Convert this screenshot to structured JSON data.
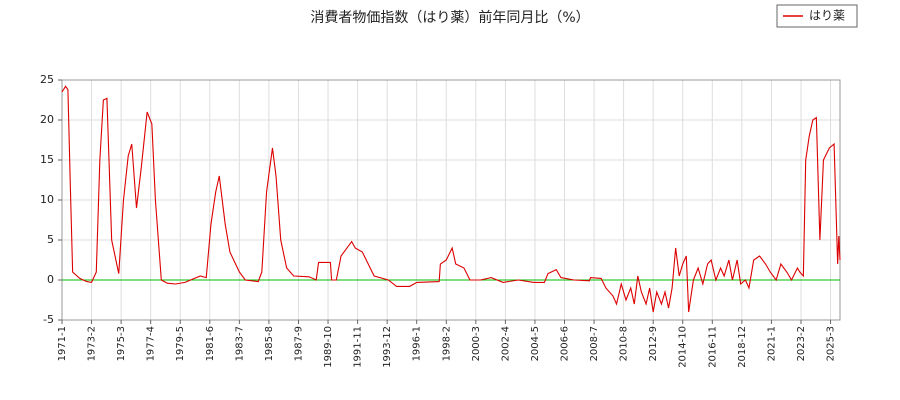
{
  "chart_data": {
    "type": "line",
    "title": "消費者物価指数（はり薬）前年同月比（%）",
    "x": [
      "1971-1",
      "1971-4",
      "1971-6",
      "1971-8",
      "1971-10",
      "1972-4",
      "1972-10",
      "1973-2",
      "1973-6",
      "1973-9",
      "1973-12",
      "1974-3",
      "1974-7",
      "1975-1",
      "1975-5",
      "1975-9",
      "1975-12",
      "1976-4",
      "1976-8",
      "1977-1",
      "1977-5",
      "1977-8",
      "1978-1",
      "1978-6",
      "1979-1",
      "1979-9",
      "1980-5",
      "1980-10",
      "1981-3",
      "1981-7",
      "1981-11",
      "1982-2",
      "1982-7",
      "1982-11",
      "1983-7",
      "1983-12",
      "1984-11",
      "1985-2",
      "1985-6",
      "1985-11",
      "1986-2",
      "1986-6",
      "1986-11",
      "1987-5",
      "1988-6",
      "1988-12",
      "1989-2",
      "1989-12",
      "1990-1",
      "1990-5",
      "1990-9",
      "1991-6",
      "1991-9",
      "1992-3",
      "1993-1",
      "1994-1",
      "1994-8",
      "1995-7",
      "1996-1",
      "1997-8",
      "1997-9",
      "1998-2",
      "1998-7",
      "1998-10",
      "1999-5",
      "1999-10",
      "2000-7",
      "2001-4",
      "2002-2",
      "2003-3",
      "2004-4",
      "2005-1",
      "2005-4",
      "2005-11",
      "2006-3",
      "2007-2",
      "2008-3",
      "2008-4",
      "2009-1",
      "2009-5",
      "2009-11",
      "2010-2",
      "2010-6",
      "2010-10",
      "2011-2",
      "2011-5",
      "2011-8",
      "2011-11",
      "2012-3",
      "2012-6",
      "2012-9",
      "2012-12",
      "2013-4",
      "2013-7",
      "2013-10",
      "2014-1",
      "2014-4",
      "2014-7",
      "2014-10",
      "2015-1",
      "2015-3",
      "2015-7",
      "2015-11",
      "2016-3",
      "2016-7",
      "2016-10",
      "2017-2",
      "2017-6",
      "2017-9",
      "2018-1",
      "2018-4",
      "2018-8",
      "2018-11",
      "2019-3",
      "2019-6",
      "2019-10",
      "2020-3",
      "2020-8",
      "2020-12",
      "2021-5",
      "2021-9",
      "2022-2",
      "2022-6",
      "2022-11",
      "2023-1",
      "2023-4",
      "2023-6",
      "2023-9",
      "2023-12",
      "2024-3",
      "2024-6",
      "2024-9",
      "2025-2",
      "2025-6",
      "2025-9",
      "2025-10",
      "2025-11"
    ],
    "series": [
      {
        "name": "はり薬",
        "color": "#dd0000",
        "values": [
          23.5,
          24.2,
          23.8,
          12,
          1,
          0.2,
          -0.2,
          -0.3,
          1,
          15,
          22.5,
          22.7,
          5,
          0.8,
          10,
          15.5,
          17,
          9,
          14,
          21,
          19.5,
          10,
          0,
          -0.4,
          -0.5,
          -0.3,
          0.2,
          0.5,
          0.3,
          7,
          11,
          13,
          7,
          3.5,
          1,
          0,
          -0.2,
          1,
          11,
          16.5,
          13,
          5,
          1.5,
          0.5,
          0.4,
          0,
          2.2,
          2.2,
          0,
          0,
          3,
          4.8,
          4,
          3.5,
          0.5,
          0,
          -0.8,
          -0.8,
          -0.3,
          -0.2,
          2,
          2.5,
          4,
          2,
          1.5,
          0,
          0,
          0.3,
          -0.3,
          0,
          -0.3,
          -0.3,
          0.8,
          1.3,
          0.3,
          0,
          -0.1,
          0.3,
          0.2,
          -1,
          -2,
          -3,
          -0.5,
          -2.5,
          -1,
          -3,
          0.5,
          -1.5,
          -3,
          -1,
          -4,
          -1.5,
          -3,
          -1.5,
          -3.5,
          -1,
          4,
          0.5,
          2,
          3,
          -4,
          0,
          1.5,
          -0.5,
          2,
          2.5,
          0,
          1.5,
          0.5,
          2.5,
          0,
          2.5,
          -0.5,
          0,
          -1,
          2.5,
          3,
          2,
          1,
          0,
          2,
          1,
          0,
          1.5,
          1,
          0.5,
          15,
          18,
          20,
          20.3,
          5,
          15,
          16.5,
          17,
          2,
          5.5,
          2.5
        ]
      }
    ],
    "xlim": [
      "1971-1",
      "2025-11"
    ],
    "xticks": [
      "1971-1",
      "1973-2",
      "1975-3",
      "1977-4",
      "1979-5",
      "1981-6",
      "1983-7",
      "1985-8",
      "1987-9",
      "1989-10",
      "1991-11",
      "1993-12",
      "1996-1",
      "1998-2",
      "2000-3",
      "2002-4",
      "2004-5",
      "2006-6",
      "2008-7",
      "2010-8",
      "2012-9",
      "2014-10",
      "2016-11",
      "2018-12",
      "2021-1",
      "2023-2",
      "2025-3"
    ],
    "ylim": [
      -5,
      25
    ],
    "yticks": [
      -5,
      0,
      5,
      10,
      15,
      20,
      25
    ],
    "grid": true,
    "zero_line_color": "#00bb00",
    "legend": "upper right"
  }
}
